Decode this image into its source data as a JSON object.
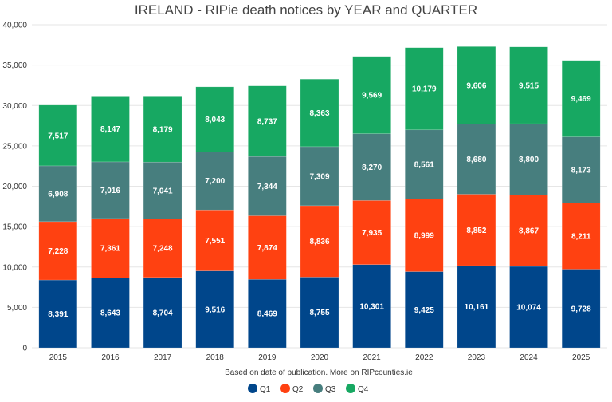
{
  "chart_data": {
    "type": "bar",
    "stacked": true,
    "title": "IRELAND - RIPie death notices by YEAR and QUARTER",
    "subtitle": "Based on date of publication. More on RIPcounties.ie",
    "xlabel": "",
    "ylabel": "",
    "ylim": [
      0,
      40000
    ],
    "yticks": [
      "0",
      "5,000",
      "10,000",
      "15,000",
      "20,000",
      "25,000",
      "30,000",
      "35,000",
      "40,000"
    ],
    "grid": true,
    "legend_position": "bottom",
    "categories": [
      "2015",
      "2016",
      "2017",
      "2018",
      "2019",
      "2020",
      "2021",
      "2022",
      "2023",
      "2024",
      "2025"
    ],
    "series": [
      {
        "name": "Q1",
        "color": "#00468B",
        "values": [
          8391,
          8643,
          8704,
          9516,
          8469,
          8755,
          10301,
          9425,
          10161,
          10074,
          9728
        ],
        "labels": [
          "8,391",
          "8,643",
          "8,704",
          "9,516",
          "8,469",
          "8,755",
          "10,301",
          "9,425",
          "10,161",
          "10,074",
          "9,728"
        ]
      },
      {
        "name": "Q2",
        "color": "#FF4111",
        "values": [
          7228,
          7361,
          7248,
          7551,
          7874,
          8836,
          7935,
          8999,
          8852,
          8867,
          8211
        ],
        "labels": [
          "7,228",
          "7,361",
          "7,248",
          "7,551",
          "7,874",
          "8,836",
          "7,935",
          "8,999",
          "8,852",
          "8,867",
          "8,211"
        ]
      },
      {
        "name": "Q3",
        "color": "#477E7E",
        "values": [
          6908,
          7016,
          7041,
          7200,
          7344,
          7309,
          8270,
          8561,
          8680,
          8800,
          8173
        ],
        "labels": [
          "6,908",
          "7,016",
          "7,041",
          "7,200",
          "7,344",
          "7,309",
          "8,270",
          "8,561",
          "8,680",
          "8,800",
          "8,173"
        ]
      },
      {
        "name": "Q4",
        "color": "#17A862",
        "values": [
          7517,
          8147,
          8179,
          8043,
          8737,
          8363,
          9569,
          10179,
          9606,
          9515,
          9469
        ],
        "labels": [
          "7,517",
          "8,147",
          "8,179",
          "8,043",
          "8,737",
          "8,363",
          "9,569",
          "10,179",
          "9,606",
          "9,515",
          "9,469"
        ]
      }
    ]
  }
}
